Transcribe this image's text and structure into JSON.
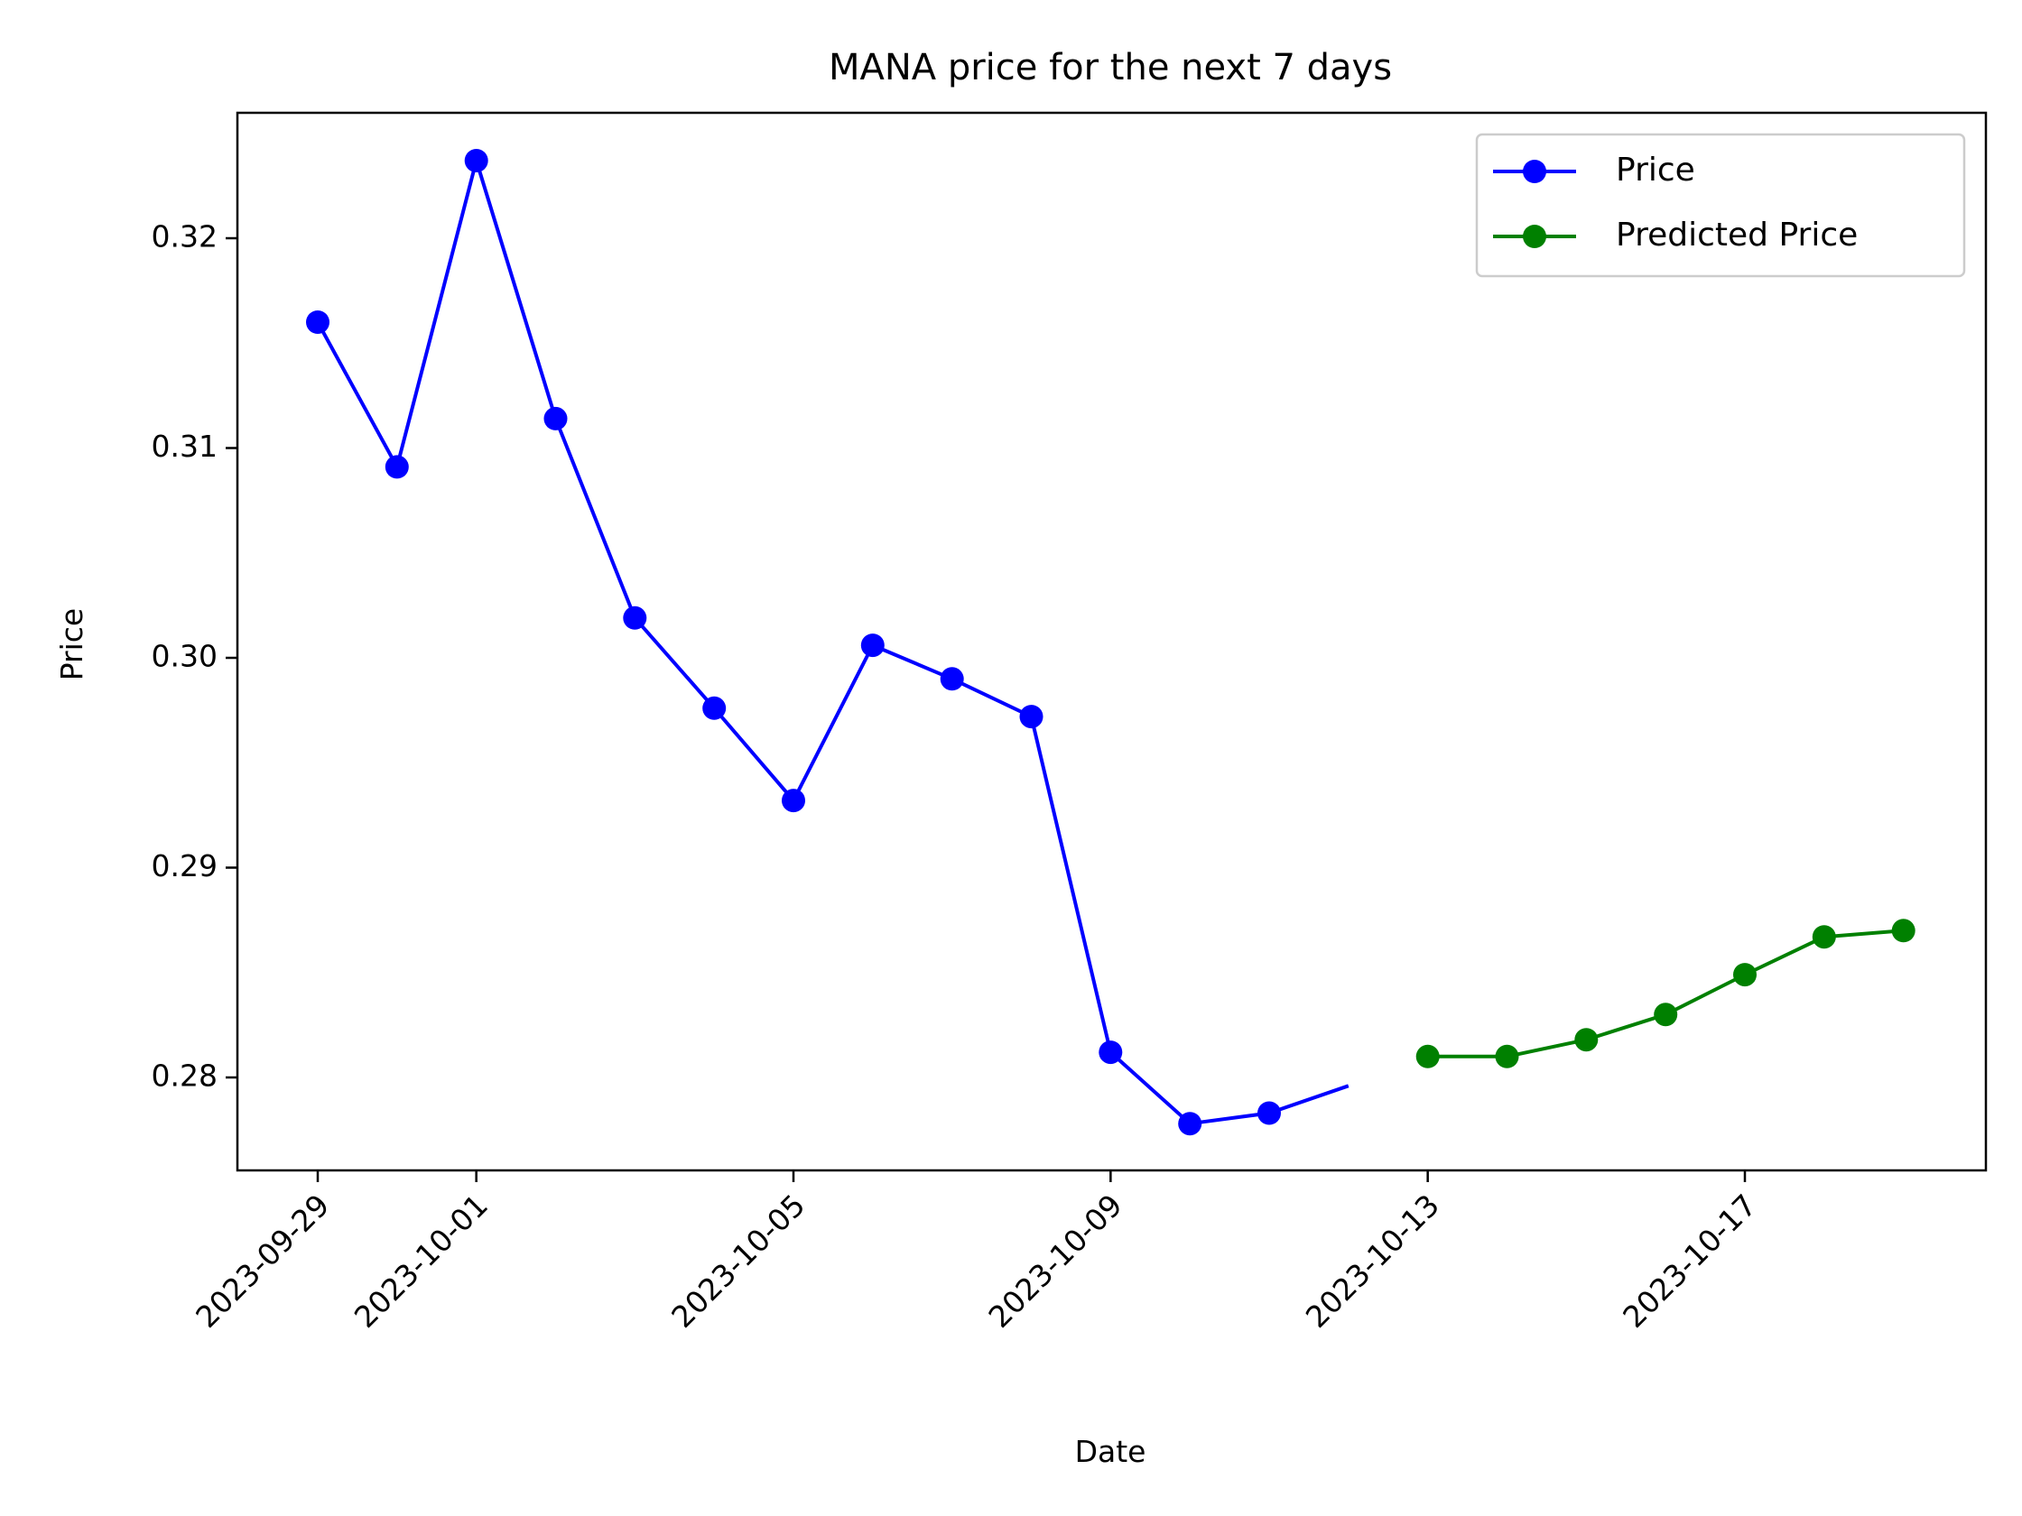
{
  "chart_data": {
    "type": "line",
    "title": "MANA price for the next 7 days",
    "xlabel": "Date",
    "ylabel": "Price",
    "x_tick_labels": [
      "2023-09-29",
      "2023-10-01",
      "2023-10-05",
      "2023-10-09",
      "2023-10-13",
      "2023-10-17"
    ],
    "y_tick_labels": [
      "0.28",
      "0.29",
      "0.30",
      "0.31",
      "0.32"
    ],
    "xlim": [
      "2023-09-28",
      "2023-10-19"
    ],
    "ylim": [
      0.2756,
      0.3264
    ],
    "grid": false,
    "legend_position": "top-right",
    "series": [
      {
        "name": "Price",
        "color": "#0000ff",
        "marker": "circle",
        "points": [
          {
            "x": "2023-09-29",
            "y": 0.316
          },
          {
            "x": "2023-09-30",
            "y": 0.3091
          },
          {
            "x": "2023-10-01",
            "y": 0.3237
          },
          {
            "x": "2023-10-02",
            "y": 0.3114
          },
          {
            "x": "2023-10-03",
            "y": 0.3019
          },
          {
            "x": "2023-10-04",
            "y": 0.2976
          },
          {
            "x": "2023-10-05",
            "y": 0.2932
          },
          {
            "x": "2023-10-06",
            "y": 0.3006
          },
          {
            "x": "2023-10-07",
            "y": 0.299
          },
          {
            "x": "2023-10-08",
            "y": 0.2972
          },
          {
            "x": "2023-10-09",
            "y": 0.2812
          },
          {
            "x": "2023-10-10",
            "y": 0.2778
          },
          {
            "x": "2023-10-11",
            "y": 0.2783
          }
        ],
        "line_end": {
          "x": "2023-10-12",
          "y": 0.2796
        }
      },
      {
        "name": "Predicted Price",
        "color": "#008000",
        "marker": "circle",
        "points": [
          {
            "x": "2023-10-13",
            "y": 0.281
          },
          {
            "x": "2023-10-14",
            "y": 0.281
          },
          {
            "x": "2023-10-15",
            "y": 0.2818
          },
          {
            "x": "2023-10-16",
            "y": 0.283
          },
          {
            "x": "2023-10-17",
            "y": 0.2849
          },
          {
            "x": "2023-10-18",
            "y": 0.2867
          },
          {
            "x": "2023-10-19",
            "y": 0.287
          }
        ]
      }
    ]
  }
}
